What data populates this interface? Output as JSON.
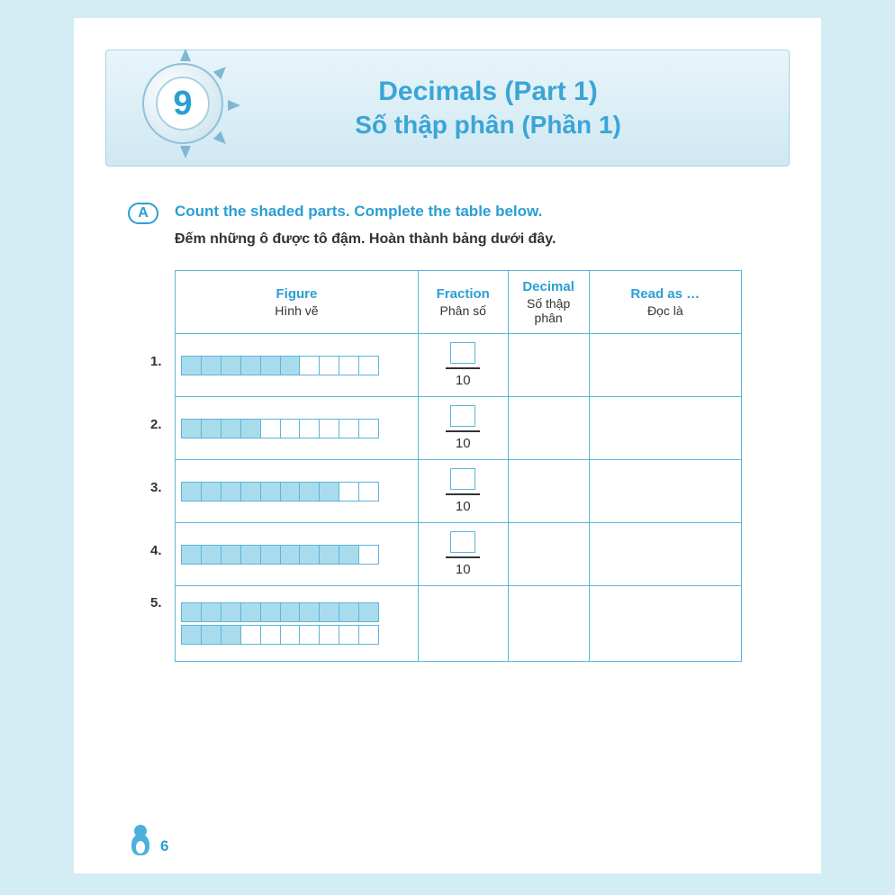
{
  "chapter": {
    "number": "9",
    "title_en": "Decimals (Part 1)",
    "title_vi": "Số thập phân (Phần 1)"
  },
  "section": {
    "letter": "A",
    "instruction_en": "Count the shaded parts. Complete the table below.",
    "instruction_vi": "Đếm những ô được tô đậm. Hoàn thành bảng dưới đây."
  },
  "table": {
    "headers": {
      "figure": {
        "en": "Figure",
        "vi": "Hình vẽ"
      },
      "fraction": {
        "en": "Fraction",
        "vi": "Phân số"
      },
      "decimal": {
        "en": "Decimal",
        "vi": "Số thập phân"
      },
      "read": {
        "en": "Read as …",
        "vi": "Đọc là"
      }
    },
    "rows": [
      {
        "n": "1.",
        "bars": [
          {
            "total": 10,
            "shaded": 6
          }
        ],
        "denominator": "10",
        "show_fraction": true
      },
      {
        "n": "2.",
        "bars": [
          {
            "total": 10,
            "shaded": 4
          }
        ],
        "denominator": "10",
        "show_fraction": true
      },
      {
        "n": "3.",
        "bars": [
          {
            "total": 10,
            "shaded": 8
          }
        ],
        "denominator": "10",
        "show_fraction": true
      },
      {
        "n": "4.",
        "bars": [
          {
            "total": 10,
            "shaded": 9
          }
        ],
        "denominator": "10",
        "show_fraction": true
      },
      {
        "n": "5.",
        "bars": [
          {
            "total": 10,
            "shaded": 10
          },
          {
            "total": 10,
            "shaded": 3
          }
        ],
        "denominator": "",
        "show_fraction": false
      }
    ]
  },
  "page_number": "6",
  "colors": {
    "page_bg": "#d4ecf3",
    "accent": "#2a9fd4",
    "border": "#5db4da",
    "shaded": "#a8dced",
    "text": "#333333"
  }
}
